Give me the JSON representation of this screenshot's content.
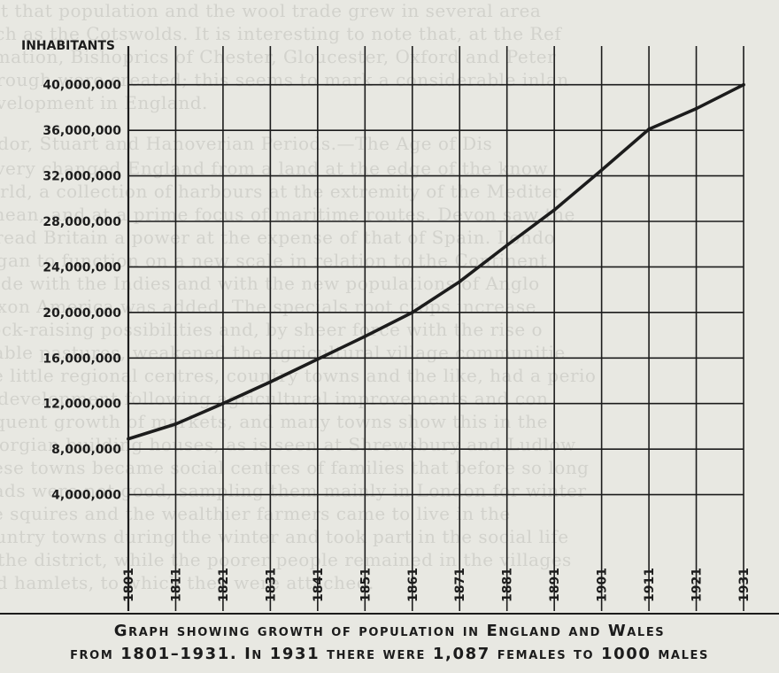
{
  "chart_data": {
    "type": "line",
    "ylabel": "INHABITANTS",
    "xlabel": "",
    "x": [
      "1801",
      "1811",
      "1821",
      "1831",
      "1841",
      "1851",
      "1861",
      "1871",
      "1881",
      "1891",
      "1901",
      "1911",
      "1921",
      "1931"
    ],
    "series": [
      {
        "values": [
          8900000,
          10200000,
          12000000,
          13900000,
          15900000,
          17900000,
          20000000,
          22700000,
          25900000,
          29000000,
          32500000,
          36100000,
          37900000,
          40000000
        ]
      }
    ],
    "yticks": [
      "4,000,000",
      "8,000,000",
      "12,000,000",
      "16,000,000",
      "20,000,000",
      "24,000,000",
      "28,000,000",
      "32,000,000",
      "36,000,000",
      "40,000,000"
    ],
    "ylim": [
      0,
      42000000
    ],
    "grid": true,
    "line_color": "#1c1c1c"
  },
  "caption": {
    "line1": "Graph showing growth of population in England and Wales",
    "line2": "from 1801–1931. In 1931 there were 1,087 females to 1000 males"
  }
}
